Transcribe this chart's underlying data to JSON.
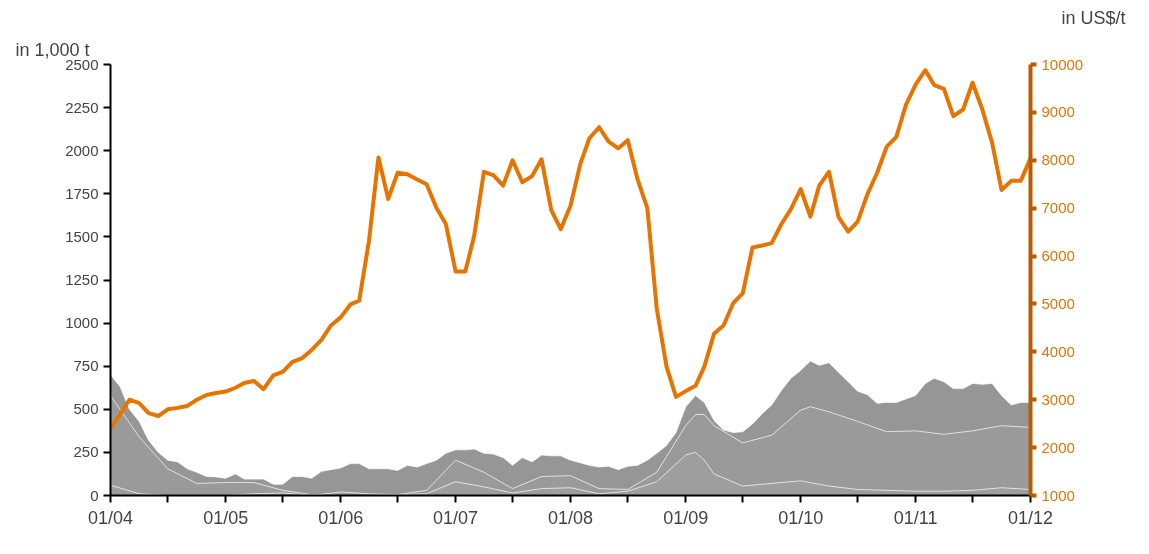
{
  "chart_data": {
    "type": "area",
    "ylabel": "in 1,000 t",
    "y2label": "in US$/t",
    "xlim": [
      "2004-01",
      "2012-01"
    ],
    "xticks": [
      {
        "value": "2004-01",
        "label": "01/04"
      },
      {
        "value": "2004-07",
        "label": null
      },
      {
        "value": "2005-01",
        "label": "01/05"
      },
      {
        "value": "2005-07",
        "label": null
      },
      {
        "value": "2006-01",
        "label": "01/06"
      },
      {
        "value": "2006-07",
        "label": null
      },
      {
        "value": "2007-01",
        "label": "01/07"
      },
      {
        "value": "2007-07",
        "label": null
      },
      {
        "value": "2008-01",
        "label": "01/08"
      },
      {
        "value": "2008-07",
        "label": null
      },
      {
        "value": "2009-01",
        "label": "01/09"
      },
      {
        "value": "2009-07",
        "label": null
      },
      {
        "value": "2010-01",
        "label": "01/10"
      },
      {
        "value": "2010-07",
        "label": null
      },
      {
        "value": "2011-01",
        "label": "01/11"
      },
      {
        "value": "2011-07",
        "label": null
      },
      {
        "value": "2012-01",
        "label": "01/12"
      }
    ],
    "ylim": [
      0,
      2500
    ],
    "yticks": [
      0,
      250,
      500,
      750,
      1000,
      1250,
      1500,
      1750,
      2000,
      2250,
      2500
    ],
    "y2lim": [
      1000,
      10000
    ],
    "y2ticks": [
      1000,
      2000,
      3000,
      4000,
      5000,
      6000,
      7000,
      8000,
      9000,
      10000
    ],
    "grid": false,
    "series": [
      {
        "color": "#969696",
        "x": [
          "2004-01",
          "2004-02",
          "2004-03",
          "2004-04",
          "2004-05",
          "2004-06",
          "2004-07",
          "2004-08",
          "2004-09",
          "2004-10",
          "2004-11",
          "2004-12",
          "2005-01",
          "2005-02",
          "2005-03",
          "2005-04",
          "2005-05",
          "2005-06",
          "2005-07",
          "2005-08",
          "2005-09",
          "2005-10",
          "2005-11",
          "2005-12",
          "2006-01",
          "2006-02",
          "2006-03",
          "2006-04",
          "2006-05",
          "2006-06",
          "2006-07",
          "2006-08",
          "2006-09",
          "2006-10",
          "2006-11",
          "2006-12",
          "2007-01",
          "2007-02",
          "2007-03",
          "2007-04",
          "2007-05",
          "2007-06",
          "2007-07",
          "2007-08",
          "2007-09",
          "2007-10",
          "2007-11",
          "2007-12",
          "2008-01",
          "2008-02",
          "2008-03",
          "2008-04",
          "2008-05",
          "2008-06",
          "2008-07",
          "2008-08",
          "2008-09",
          "2008-10",
          "2008-11",
          "2008-12",
          "2009-01",
          "2009-02",
          "2009-03",
          "2009-04",
          "2009-05",
          "2009-06",
          "2009-07",
          "2009-08",
          "2009-09",
          "2009-10",
          "2009-11",
          "2009-12",
          "2010-01",
          "2010-02",
          "2010-03",
          "2010-04",
          "2010-05",
          "2010-06",
          "2010-07",
          "2010-08",
          "2010-09",
          "2010-10",
          "2010-11",
          "2010-12",
          "2011-01",
          "2011-02",
          "2011-03",
          "2011-04",
          "2011-05",
          "2011-06",
          "2011-07",
          "2011-08",
          "2011-09",
          "2011-10",
          "2011-11",
          "2011-12",
          "2012-01"
        ],
        "values": [
          700,
          630,
          500,
          430,
          320,
          250,
          205,
          195,
          155,
          135,
          110,
          108,
          100,
          125,
          95,
          95,
          95,
          65,
          65,
          110,
          110,
          100,
          140,
          150,
          160,
          185,
          185,
          155,
          155,
          155,
          145,
          175,
          165,
          185,
          205,
          245,
          265,
          265,
          270,
          245,
          240,
          220,
          175,
          220,
          195,
          235,
          230,
          230,
          205,
          190,
          175,
          165,
          170,
          150,
          170,
          175,
          205,
          245,
          290,
          365,
          515,
          580,
          540,
          435,
          380,
          365,
          370,
          415,
          475,
          525,
          610,
          680,
          725,
          780,
          755,
          770,
          715,
          660,
          605,
          585,
          535,
          540,
          540,
          560,
          580,
          650,
          680,
          660,
          620,
          620,
          650,
          645,
          650,
          580,
          525,
          540,
          540
        ]
      },
      {
        "color": "#9a9a9a",
        "x": [
          "2004-01",
          "2004-04",
          "2004-07",
          "2004-10",
          "2005-01",
          "2005-04",
          "2005-07",
          "2005-10",
          "2006-01",
          "2006-04",
          "2006-07",
          "2006-10",
          "2007-01",
          "2007-04",
          "2007-07",
          "2007-10",
          "2008-01",
          "2008-04",
          "2008-07",
          "2008-10",
          "2009-01",
          "2009-02",
          "2009-03",
          "2009-04",
          "2009-07",
          "2009-10",
          "2010-01",
          "2010-02",
          "2010-04",
          "2010-07",
          "2010-10",
          "2011-01",
          "2011-04",
          "2011-07",
          "2011-10",
          "2012-01"
        ],
        "values": [
          580,
          340,
          155,
          70,
          75,
          75,
          30,
          5,
          10,
          5,
          5,
          30,
          205,
          135,
          40,
          110,
          115,
          40,
          35,
          135,
          405,
          470,
          470,
          405,
          305,
          350,
          495,
          515,
          485,
          430,
          370,
          375,
          355,
          375,
          405,
          395
        ]
      },
      {
        "color": "#9e9e9e",
        "x": [
          "2004-01",
          "2004-04",
          "2004-07",
          "2004-10",
          "2005-01",
          "2005-04",
          "2005-07",
          "2005-10",
          "2006-01",
          "2006-04",
          "2006-07",
          "2006-10",
          "2007-01",
          "2007-04",
          "2007-07",
          "2007-10",
          "2008-01",
          "2008-04",
          "2008-07",
          "2008-10",
          "2009-01",
          "2009-02",
          "2009-03",
          "2009-04",
          "2009-07",
          "2009-10",
          "2010-01",
          "2010-04",
          "2010-07",
          "2010-10",
          "2011-01",
          "2011-04",
          "2011-07",
          "2011-10",
          "2012-01"
        ],
        "values": [
          60,
          10,
          0,
          0,
          0,
          10,
          15,
          0,
          20,
          10,
          5,
          10,
          80,
          50,
          15,
          40,
          45,
          10,
          25,
          80,
          235,
          250,
          205,
          125,
          55,
          70,
          85,
          55,
          35,
          30,
          25,
          25,
          30,
          45,
          35
        ]
      },
      {
        "type": "line",
        "axis": "y2",
        "color": "#e87400",
        "x": [
          "2004-01",
          "2004-02",
          "2004-03",
          "2004-04",
          "2004-05",
          "2004-06",
          "2004-07",
          "2004-08",
          "2004-09",
          "2004-10",
          "2004-11",
          "2004-12",
          "2005-01",
          "2005-02",
          "2005-03",
          "2005-04",
          "2005-05",
          "2005-06",
          "2005-07",
          "2005-08",
          "2005-09",
          "2005-10",
          "2005-11",
          "2005-12",
          "2006-01",
          "2006-02",
          "2006-03",
          "2006-04",
          "2006-05",
          "2006-06",
          "2006-07",
          "2006-08",
          "2006-09",
          "2006-10",
          "2006-11",
          "2006-12",
          "2007-01",
          "2007-02",
          "2007-03",
          "2007-04",
          "2007-05",
          "2007-06",
          "2007-07",
          "2007-08",
          "2007-09",
          "2007-10",
          "2007-11",
          "2007-12",
          "2008-01",
          "2008-02",
          "2008-03",
          "2008-04",
          "2008-05",
          "2008-06",
          "2008-07",
          "2008-08",
          "2008-09",
          "2008-10",
          "2008-11",
          "2008-12",
          "2009-01",
          "2009-02",
          "2009-03",
          "2009-04",
          "2009-05",
          "2009-06",
          "2009-07",
          "2009-08",
          "2009-09",
          "2009-10",
          "2009-11",
          "2009-12",
          "2010-01",
          "2010-02",
          "2010-03",
          "2010-04",
          "2010-05",
          "2010-06",
          "2010-07",
          "2010-08",
          "2010-09",
          "2010-10",
          "2010-11",
          "2010-12",
          "2011-01",
          "2011-02",
          "2011-03",
          "2011-04",
          "2011-05",
          "2011-06",
          "2011-07",
          "2011-08",
          "2011-09",
          "2011-10",
          "2011-11",
          "2011-12",
          "2012-01"
        ],
        "values": [
          2400,
          2700,
          3000,
          2930,
          2720,
          2660,
          2800,
          2830,
          2870,
          3000,
          3100,
          3140,
          3170,
          3250,
          3350,
          3390,
          3220,
          3510,
          3580,
          3790,
          3870,
          4040,
          4250,
          4550,
          4720,
          4990,
          5070,
          6320,
          8060,
          7190,
          7740,
          7710,
          7600,
          7500,
          7010,
          6670,
          5680,
          5680,
          6420,
          7760,
          7690,
          7470,
          8000,
          7540,
          7670,
          8020,
          6960,
          6560,
          7050,
          7920,
          8460,
          8690,
          8390,
          8250,
          8420,
          7600,
          7000,
          4900,
          3690,
          3060,
          3180,
          3290,
          3690,
          4380,
          4550,
          5020,
          5220,
          6180,
          6220,
          6270,
          6670,
          6980,
          7400,
          6820,
          7470,
          7760,
          6820,
          6510,
          6720,
          7290,
          7740,
          8280,
          8490,
          9150,
          9580,
          9880,
          9570,
          9490,
          8920,
          9060,
          9620,
          9060,
          8370,
          7380,
          7570,
          7570,
          8040
        ]
      }
    ]
  }
}
